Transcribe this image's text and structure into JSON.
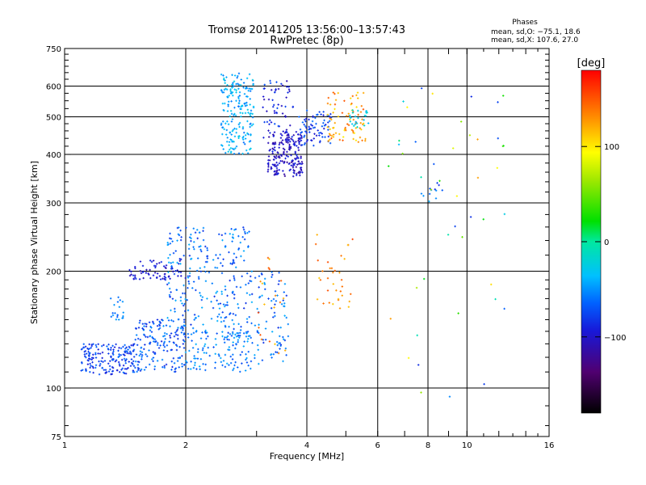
{
  "chart_data": {
    "type": "scatter",
    "title": "Tromsø 20141205 13:56:00–13:57:43",
    "subtitle": "RwPretec (8p)",
    "stats": {
      "heading": "Phases",
      "line1": "mean, sd,O: −75.1, 18.6",
      "line2": "mean, sd,X: 107.6, 27.0"
    },
    "xlabel": "Frequency [MHz]",
    "ylabel": "Stationary phase Virtual Height [km]",
    "x_scale": "log",
    "y_scale": "log",
    "xlim": [
      1,
      16
    ],
    "ylim": [
      75,
      750
    ],
    "x_ticks": [
      {
        "value": 1,
        "label": "1"
      },
      {
        "value": 2,
        "label": "2"
      },
      {
        "value": 4,
        "label": "4"
      },
      {
        "value": 6,
        "label": "6"
      },
      {
        "value": 8,
        "label": "8"
      },
      {
        "value": 10,
        "label": "10"
      },
      {
        "value": 16,
        "label": "16"
      }
    ],
    "x_grid": [
      2,
      4,
      6,
      8,
      10
    ],
    "y_ticks": [
      {
        "value": 75,
        "label": "75"
      },
      {
        "value": 100,
        "label": "100"
      },
      {
        "value": 200,
        "label": "200"
      },
      {
        "value": 300,
        "label": "300"
      },
      {
        "value": 400,
        "label": "400"
      },
      {
        "value": 500,
        "label": "500"
      },
      {
        "value": 600,
        "label": "600"
      },
      {
        "value": 750,
        "label": "750"
      }
    ],
    "y_grid": [
      100,
      200,
      300,
      400,
      500,
      600
    ],
    "grid": true,
    "colorbar": {
      "label": "[deg]",
      "range": [
        -180,
        180
      ],
      "ticks": [
        {
          "value": 100,
          "label": "100"
        },
        {
          "value": 0,
          "label": "0"
        },
        {
          "value": -100,
          "label": "−100"
        }
      ]
    },
    "clusters": [
      {
        "x": [
          1.1,
          1.5
        ],
        "y": [
          108,
          130
        ],
        "phase": [
          -95,
          -60
        ],
        "n": 180
      },
      {
        "x": [
          1.5,
          2.0
        ],
        "y": [
          110,
          150
        ],
        "phase": [
          -90,
          -50
        ],
        "n": 170
      },
      {
        "x": [
          2.0,
          2.9
        ],
        "y": [
          110,
          140
        ],
        "phase": [
          -75,
          -40
        ],
        "n": 130
      },
      {
        "x": [
          1.45,
          2.0
        ],
        "y": [
          190,
          215
        ],
        "phase": [
          -110,
          -80
        ],
        "n": 70
      },
      {
        "x": [
          1.8,
          2.9
        ],
        "y": [
          140,
          260
        ],
        "phase": [
          -85,
          -40
        ],
        "n": 260
      },
      {
        "x": [
          2.9,
          3.6
        ],
        "y": [
          115,
          200
        ],
        "phase": [
          -85,
          -40
        ],
        "n": 90
      },
      {
        "x": [
          1.3,
          1.4
        ],
        "y": [
          150,
          175
        ],
        "phase": [
          -70,
          -45
        ],
        "n": 20
      },
      {
        "x": [
          2.45,
          2.95
        ],
        "y": [
          400,
          650
        ],
        "phase": [
          -60,
          -25
        ],
        "n": 200
      },
      {
        "x": [
          3.1,
          3.7
        ],
        "y": [
          440,
          620
        ],
        "phase": [
          -110,
          -70
        ],
        "n": 60
      },
      {
        "x": [
          3.2,
          3.9
        ],
        "y": [
          350,
          460
        ],
        "phase": [
          -120,
          -85
        ],
        "n": 200
      },
      {
        "x": [
          3.8,
          4.6
        ],
        "y": [
          420,
          520
        ],
        "phase": [
          -100,
          -60
        ],
        "n": 80
      },
      {
        "x": [
          4.5,
          5.6
        ],
        "y": [
          430,
          580
        ],
        "phase": [
          100,
          150
        ],
        "n": 80
      },
      {
        "x": [
          5.0,
          5.7
        ],
        "y": [
          470,
          520
        ],
        "phase": [
          -40,
          -10
        ],
        "n": 25
      },
      {
        "x": [
          4.2,
          5.2
        ],
        "y": [
          160,
          250
        ],
        "phase": [
          110,
          160
        ],
        "n": 35
      },
      {
        "x": [
          3.0,
          3.6
        ],
        "y": [
          120,
          220
        ],
        "phase": [
          110,
          160
        ],
        "n": 20
      },
      {
        "x": [
          7.7,
          8.7
        ],
        "y": [
          300,
          340
        ],
        "phase": [
          -90,
          -40
        ],
        "n": 12
      },
      {
        "x": [
          6.3,
          12.5
        ],
        "y": [
          90,
          600
        ],
        "phase": [
          -100,
          130
        ],
        "n": 45
      }
    ]
  }
}
